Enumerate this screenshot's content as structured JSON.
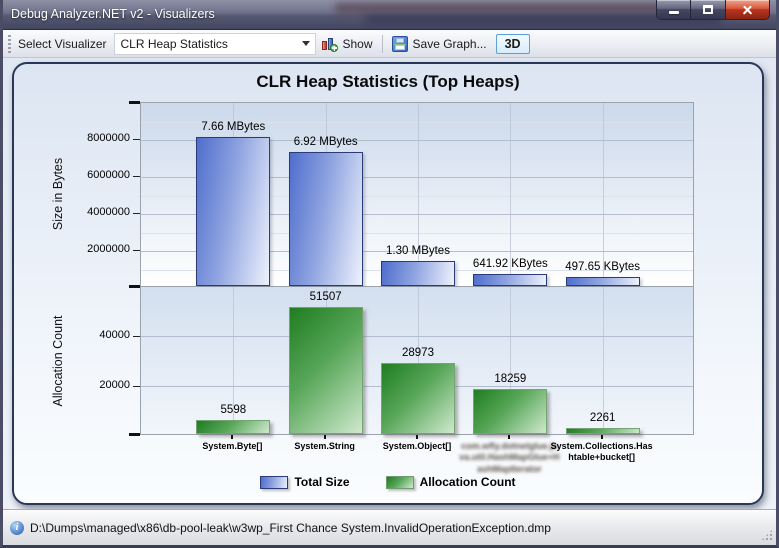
{
  "window": {
    "title": "Debug Analyzer.NET v2 - Visualizers"
  },
  "toolbar": {
    "select_label": "Select Visualizer",
    "combo_value": "CLR Heap Statistics",
    "show_label": "Show",
    "save_label": "Save Graph...",
    "threed_label": "3D"
  },
  "statusbar": {
    "path": "D:\\Dumps\\managed\\x86\\db-pool-leak\\w3wp_First Chance System.InvalidOperationException.dmp"
  },
  "colors": {
    "total_size_bar": "#5272d0",
    "allocation_bar": "#2e8b2e",
    "panel_border": "#2a3857",
    "close_button": "#c03a24"
  },
  "chart_data": {
    "type": "bar",
    "title": "CLR Heap Statistics (Top Heaps)",
    "legend_position": "bottom",
    "grid": true,
    "categories": [
      "System.Byte[]",
      "System.String",
      "System.Object[]",
      "com.wfly.dotnetglue.java.util.HashMapGlue+HashMapIterator",
      "System.Collections.Hashtable+bucket[]"
    ],
    "category_display": [
      "System.Byte[]",
      "System.String",
      "System.Object[]",
      "com.wfly.dotnetglue.ja\nva.util.HashMapGlue+H\nashMapIterator",
      "System.Collections.Has\nhtable+bucket[]"
    ],
    "category_redacted": [
      false,
      false,
      false,
      true,
      false
    ],
    "charts": [
      {
        "name": "Total Size",
        "ylabel": "Size in Bytes",
        "color": "blue",
        "values": [
          8032092,
          7256146,
          1363149,
          657326,
          509594
        ],
        "value_labels": [
          "7.66 MBytes",
          "6.92 MBytes",
          "1.30 MBytes",
          "641.92 KBytes",
          "497.65 KBytes"
        ],
        "ylim": [
          0,
          10000000
        ],
        "yticks": [
          2000000,
          4000000,
          6000000,
          8000000
        ],
        "yticks_minor": [
          1000000,
          3000000,
          5000000,
          7000000,
          9000000
        ]
      },
      {
        "name": "Allocation Count",
        "ylabel": "Allocation Count",
        "color": "green",
        "values": [
          5598,
          51507,
          28973,
          18259,
          2261
        ],
        "value_labels": [
          "5598",
          "51507",
          "28973",
          "18259",
          "2261"
        ],
        "ylim": [
          0,
          60000
        ],
        "yticks": [
          20000,
          40000
        ],
        "yticks_minor": []
      }
    ],
    "legend": [
      {
        "label": "Total Size",
        "color": "#5272d0"
      },
      {
        "label": "Allocation Count",
        "color": "#2e8b2e"
      }
    ]
  }
}
